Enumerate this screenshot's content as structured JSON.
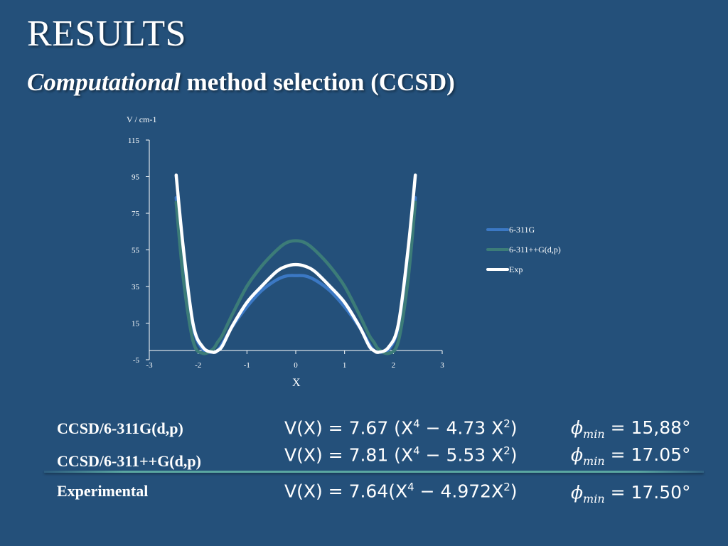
{
  "slide": {
    "title": "RESULTS",
    "subtitle_italic": "Computational",
    "subtitle_rest": " method selection (CCSD)"
  },
  "chart_data": {
    "type": "line",
    "ylabel": "V / cm-1",
    "xlabel": "X",
    "xlim": [
      -3,
      3
    ],
    "ylim": [
      -5,
      115
    ],
    "xticks": [
      "-3",
      "-2",
      "-1",
      "0",
      "1",
      "2",
      "3"
    ],
    "yticks": [
      "115",
      "95",
      "75",
      "55",
      "35",
      "15",
      "-5"
    ],
    "grid": false,
    "legend_position": "right",
    "x": [
      -2.45,
      -2.3,
      -2.1,
      -1.9,
      -1.7,
      -1.6,
      -1.5,
      -1.3,
      -1.0,
      -0.7,
      -0.4,
      -0.2,
      0,
      0.2,
      0.4,
      0.7,
      1.0,
      1.3,
      1.5,
      1.6,
      1.7,
      1.9,
      2.1,
      2.3,
      2.45
    ],
    "series": [
      {
        "name": "6-311G",
        "color": "#3b78c4",
        "values": [
          83.5,
          44.9,
          12.4,
          0.5,
          -0.8,
          0.0,
          3.9,
          13.0,
          23.9,
          32.7,
          38.5,
          40.7,
          41.0,
          40.7,
          38.5,
          32.7,
          23.9,
          13.0,
          3.9,
          0.0,
          -0.8,
          0.5,
          12.4,
          44.9,
          83.5
        ]
      },
      {
        "name": "6-311++G(d,p)",
        "color": "#3c7c78",
        "values": [
          81.0,
          38.6,
          4.9,
          -1.5,
          0.7,
          4.6,
          8.5,
          19.7,
          35.1,
          46.1,
          54.6,
          58.8,
          60.0,
          58.8,
          54.6,
          46.1,
          35.1,
          19.7,
          8.5,
          4.6,
          0.7,
          -1.5,
          4.9,
          38.6,
          81.0
        ]
      },
      {
        "name": "Exp",
        "color": "#ffffff",
        "values": [
          95.8,
          55.1,
          14.1,
          1.8,
          -0.9,
          0.0,
          2.7,
          13.4,
          26.3,
          35.1,
          43.0,
          46.0,
          47.0,
          46.0,
          43.0,
          35.1,
          26.3,
          13.4,
          2.7,
          0.0,
          -0.9,
          1.8,
          14.1,
          55.1,
          95.8
        ]
      }
    ]
  },
  "results": [
    {
      "label": "CCSD/6-311G(d,p)",
      "eq_a": "V(X) = 7.67 (X",
      "exp1": "4",
      "eq_b": " − 4.73 X",
      "exp2": "2",
      "eq_c": ")",
      "phi_sym": "ϕ",
      "phi_sub": "min",
      "phi_val": " = 15,88°"
    },
    {
      "label": "CCSD/6-311++G(d,p)",
      "eq_a": "V(X) = 7.81 (X",
      "exp1": "4",
      "eq_b": " − 5.53 X",
      "exp2": "2",
      "eq_c": ")",
      "phi_sym": "ϕ",
      "phi_sub": "min",
      "phi_val": " = 17.05°"
    },
    {
      "label": "Experimental",
      "eq_a": "V(X) = 7.64(X",
      "exp1": "4",
      "eq_b": " − 4.972X",
      "exp2": "2",
      "eq_c": ")",
      "phi_sym": "ϕ",
      "phi_sub": "min",
      "phi_val": " = 17.50°"
    }
  ]
}
